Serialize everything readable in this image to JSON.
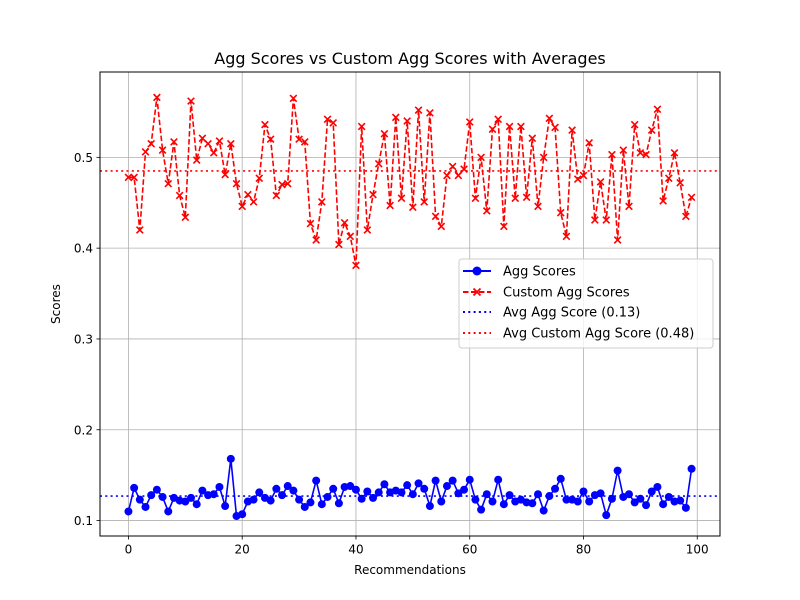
{
  "chart_data": {
    "type": "line",
    "title": "Agg Scores vs Custom Agg Scores with Averages",
    "xlabel": "Recommendations",
    "ylabel": "Scores",
    "xlim": [
      -5,
      104
    ],
    "ylim": [
      0.083,
      0.594
    ],
    "x_ticks": [
      0,
      20,
      40,
      60,
      80,
      100
    ],
    "y_ticks": [
      0.1,
      0.2,
      0.3,
      0.4,
      0.5
    ],
    "x_tick_labels": [
      "0",
      "20",
      "40",
      "60",
      "80",
      "100"
    ],
    "y_tick_labels": [
      "0.1",
      "0.2",
      "0.3",
      "0.4",
      "0.5"
    ],
    "grid": true,
    "legend_position": "center-right",
    "series": [
      {
        "name": "Agg Scores",
        "color": "#0000ff",
        "line_style": "solid",
        "marker": "circle",
        "values": [
          0.11,
          0.136,
          0.123,
          0.115,
          0.128,
          0.134,
          0.126,
          0.11,
          0.125,
          0.122,
          0.121,
          0.125,
          0.118,
          0.133,
          0.128,
          0.129,
          0.137,
          0.116,
          0.168,
          0.105,
          0.107,
          0.121,
          0.123,
          0.131,
          0.125,
          0.122,
          0.135,
          0.128,
          0.138,
          0.133,
          0.123,
          0.115,
          0.12,
          0.144,
          0.118,
          0.126,
          0.135,
          0.119,
          0.137,
          0.138,
          0.134,
          0.124,
          0.132,
          0.125,
          0.131,
          0.14,
          0.131,
          0.133,
          0.131,
          0.139,
          0.129,
          0.141,
          0.135,
          0.116,
          0.144,
          0.121,
          0.138,
          0.144,
          0.13,
          0.134,
          0.145,
          0.123,
          0.112,
          0.129,
          0.121,
          0.145,
          0.118,
          0.128,
          0.121,
          0.123,
          0.12,
          0.119,
          0.129,
          0.111,
          0.127,
          0.135,
          0.146,
          0.123,
          0.123,
          0.121,
          0.132,
          0.121,
          0.128,
          0.13,
          0.106,
          0.124,
          0.155,
          0.126,
          0.129,
          0.12,
          0.124,
          0.117,
          0.132,
          0.137,
          0.118,
          0.126,
          0.121,
          0.122,
          0.114,
          0.157
        ]
      },
      {
        "name": "Custom Agg Scores",
        "color": "#ff0000",
        "line_style": "dashed",
        "marker": "x",
        "values": [
          0.478,
          0.478,
          0.42,
          0.506,
          0.515,
          0.566,
          0.508,
          0.471,
          0.517,
          0.458,
          0.434,
          0.562,
          0.497,
          0.521,
          0.515,
          0.505,
          0.518,
          0.481,
          0.515,
          0.471,
          0.446,
          0.459,
          0.451,
          0.477,
          0.536,
          0.52,
          0.458,
          0.47,
          0.471,
          0.565,
          0.52,
          0.517,
          0.427,
          0.409,
          0.451,
          0.542,
          0.538,
          0.404,
          0.428,
          0.413,
          0.381,
          0.534,
          0.42,
          0.459,
          0.493,
          0.526,
          0.447,
          0.544,
          0.455,
          0.54,
          0.445,
          0.552,
          0.451,
          0.549,
          0.435,
          0.424,
          0.48,
          0.49,
          0.48,
          0.487,
          0.539,
          0.455,
          0.5,
          0.441,
          0.531,
          0.542,
          0.424,
          0.534,
          0.455,
          0.534,
          0.456,
          0.521,
          0.446,
          0.5,
          0.543,
          0.533,
          0.439,
          0.413,
          0.53,
          0.476,
          0.48,
          0.516,
          0.431,
          0.473,
          0.431,
          0.503,
          0.409,
          0.508,
          0.446,
          0.536,
          0.505,
          0.503,
          0.53,
          0.553,
          0.452,
          0.477,
          0.505,
          0.472,
          0.435,
          0.456
        ]
      },
      {
        "name": "Avg Agg Score (0.13)",
        "color": "#0000ff",
        "line_style": "dotted",
        "constant": 0.127
      },
      {
        "name": "Avg Custom Agg Score (0.48)",
        "color": "#ff0000",
        "line_style": "dotted",
        "constant": 0.485
      }
    ]
  }
}
